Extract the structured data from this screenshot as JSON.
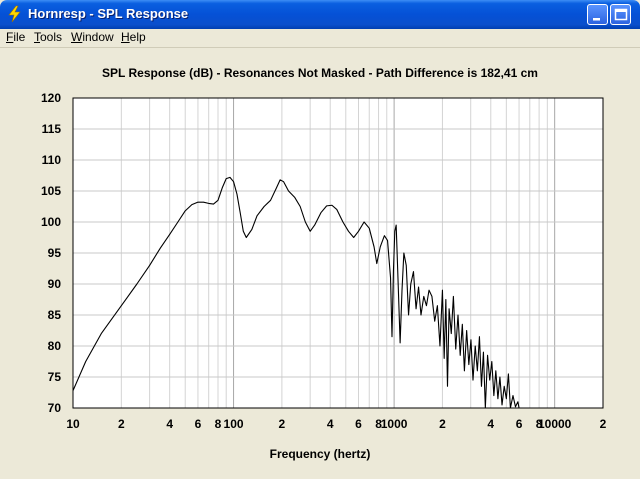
{
  "window": {
    "title": "Hornresp - SPL Response",
    "icon": "lightning-bolt-icon",
    "controls": [
      "minimize-icon",
      "maximize-icon",
      "close-icon"
    ]
  },
  "menu": {
    "items": [
      {
        "label": "File",
        "accel": "F",
        "rest": "ile"
      },
      {
        "label": "Tools",
        "accel": "T",
        "rest": "ools"
      },
      {
        "label": "Window",
        "accel": "W",
        "rest": "indow"
      },
      {
        "label": "Help",
        "accel": "H",
        "rest": "elp"
      }
    ]
  },
  "chart_data": {
    "type": "line",
    "title": "SPL Response (dB) - Resonances Not Masked - Path Difference is 182,41 cm",
    "xlabel": "Frequency (hertz)",
    "ylabel": "",
    "xscale": "log",
    "xlim": [
      10,
      20000
    ],
    "ylim": [
      70,
      120
    ],
    "grid": true,
    "yticks": [
      "120",
      "115",
      "110",
      "105",
      "100",
      "95",
      "90",
      "85",
      "80",
      "75",
      "70"
    ],
    "xticks": [
      {
        "v": 10,
        "label": "10"
      },
      {
        "v": 20,
        "label": "2"
      },
      {
        "v": 40,
        "label": "4"
      },
      {
        "v": 60,
        "label": "6"
      },
      {
        "v": 80,
        "label": "8"
      },
      {
        "v": 100,
        "label": "100"
      },
      {
        "v": 200,
        "label": "2"
      },
      {
        "v": 400,
        "label": "4"
      },
      {
        "v": 600,
        "label": "6"
      },
      {
        "v": 800,
        "label": "8"
      },
      {
        "v": 1000,
        "label": "1000"
      },
      {
        "v": 2000,
        "label": "2"
      },
      {
        "v": 4000,
        "label": "4"
      },
      {
        "v": 6000,
        "label": "6"
      },
      {
        "v": 8000,
        "label": "8"
      },
      {
        "v": 10000,
        "label": "10000"
      },
      {
        "v": 20000,
        "label": "2"
      }
    ],
    "series": [
      {
        "color": "#000000",
        "points": [
          [
            10,
            72.8
          ],
          [
            12,
            77.5
          ],
          [
            15,
            82.0
          ],
          [
            20,
            86.5
          ],
          [
            25,
            90.0
          ],
          [
            30,
            93.0
          ],
          [
            35,
            95.8
          ],
          [
            40,
            98.0
          ],
          [
            45,
            100.0
          ],
          [
            50,
            101.8
          ],
          [
            55,
            102.8
          ],
          [
            60,
            103.2
          ],
          [
            65,
            103.2
          ],
          [
            70,
            103.0
          ],
          [
            75,
            102.9
          ],
          [
            80,
            103.5
          ],
          [
            85,
            105.5
          ],
          [
            90,
            107.0
          ],
          [
            95,
            107.2
          ],
          [
            100,
            106.5
          ],
          [
            105,
            104.5
          ],
          [
            110,
            101.5
          ],
          [
            115,
            98.5
          ],
          [
            120,
            97.5
          ],
          [
            130,
            98.8
          ],
          [
            140,
            101.0
          ],
          [
            155,
            102.5
          ],
          [
            170,
            103.5
          ],
          [
            185,
            105.5
          ],
          [
            195,
            106.8
          ],
          [
            205,
            106.5
          ],
          [
            220,
            105.0
          ],
          [
            240,
            104.0
          ],
          [
            260,
            102.5
          ],
          [
            280,
            100.0
          ],
          [
            300,
            98.5
          ],
          [
            320,
            99.5
          ],
          [
            350,
            101.5
          ],
          [
            380,
            102.6
          ],
          [
            410,
            102.7
          ],
          [
            440,
            102.0
          ],
          [
            480,
            100.0
          ],
          [
            520,
            98.5
          ],
          [
            560,
            97.5
          ],
          [
            600,
            98.5
          ],
          [
            650,
            100.0
          ],
          [
            700,
            99.0
          ],
          [
            750,
            96.0
          ],
          [
            780,
            93.3
          ],
          [
            820,
            96.0
          ],
          [
            870,
            97.8
          ],
          [
            910,
            97.0
          ],
          [
            950,
            91.0
          ],
          [
            970,
            81.5
          ],
          [
            990,
            92.0
          ],
          [
            1010,
            98.5
          ],
          [
            1030,
            99.5
          ],
          [
            1060,
            90.0
          ],
          [
            1090,
            80.5
          ],
          [
            1120,
            89.0
          ],
          [
            1150,
            95.0
          ],
          [
            1190,
            93.0
          ],
          [
            1230,
            85.0
          ],
          [
            1270,
            90.0
          ],
          [
            1320,
            92.0
          ],
          [
            1370,
            86.0
          ],
          [
            1420,
            89.5
          ],
          [
            1470,
            85.0
          ],
          [
            1530,
            88.0
          ],
          [
            1590,
            86.5
          ],
          [
            1650,
            89.0
          ],
          [
            1720,
            88.0
          ],
          [
            1790,
            84.0
          ],
          [
            1860,
            86.5
          ],
          [
            1930,
            80.0
          ],
          [
            2000,
            89.0
          ],
          [
            2050,
            78.0
          ],
          [
            2100,
            87.5
          ],
          [
            2150,
            73.5
          ],
          [
            2200,
            86.0
          ],
          [
            2270,
            82.0
          ],
          [
            2340,
            88.0
          ],
          [
            2420,
            79.5
          ],
          [
            2500,
            85.0
          ],
          [
            2580,
            78.5
          ],
          [
            2660,
            83.5
          ],
          [
            2740,
            76.0
          ],
          [
            2830,
            82.5
          ],
          [
            2920,
            77.0
          ],
          [
            3010,
            81.0
          ],
          [
            3100,
            74.5
          ],
          [
            3200,
            80.0
          ],
          [
            3300,
            76.0
          ],
          [
            3400,
            81.5
          ],
          [
            3500,
            73.5
          ],
          [
            3600,
            79.0
          ],
          [
            3700,
            70.0
          ],
          [
            3820,
            78.5
          ],
          [
            3940,
            74.5
          ],
          [
            4060,
            77.5
          ],
          [
            4180,
            72.0
          ],
          [
            4300,
            76.0
          ],
          [
            4430,
            71.5
          ],
          [
            4560,
            75.0
          ],
          [
            4700,
            70.5
          ],
          [
            4850,
            73.5
          ],
          [
            5000,
            71.5
          ],
          [
            5150,
            75.5
          ],
          [
            5300,
            70.0
          ],
          [
            5500,
            72.0
          ],
          [
            5700,
            70.2
          ],
          [
            5900,
            71.0
          ],
          [
            6000,
            70.0
          ]
        ]
      }
    ]
  }
}
